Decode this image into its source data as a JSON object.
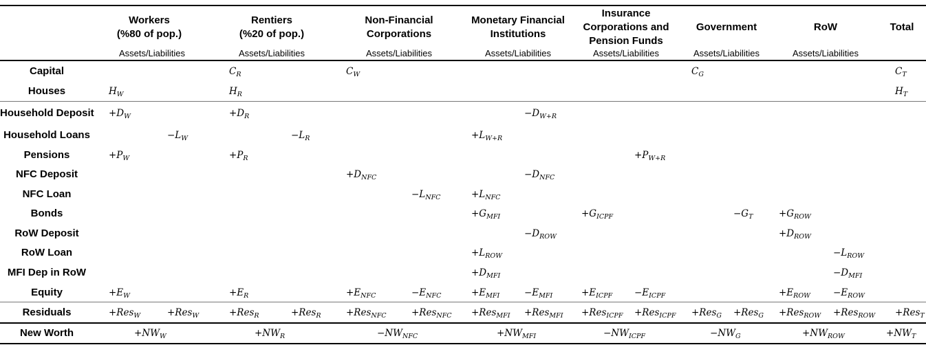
{
  "columns": [
    {
      "title": "Workers\n(%80 of pop.)",
      "sub": "Assets/Liabilities"
    },
    {
      "title": "Rentiers\n(%20 of pop.)",
      "sub": "Assets/Liabilities"
    },
    {
      "title": "Non-Financial\nCorporations",
      "sub": "Assets/Liabilities"
    },
    {
      "title": "Monetary Financial\nInstitutions",
      "sub": "Assets/Liabilities"
    },
    {
      "title": "Insurance\nCorporations and\nPension Funds",
      "sub": "Assets/Liabilities"
    },
    {
      "title": "Government",
      "sub": "Assets/Liabilities"
    },
    {
      "title": "RoW",
      "sub": "Assets/Liabilities"
    },
    {
      "title": "Total",
      "sub": ""
    }
  ],
  "rows": [
    {
      "label": "Capital",
      "cells": [
        {
          "col": 2,
          "sign": "",
          "sym": "C",
          "sub": "R"
        },
        {
          "col": 4,
          "sign": "",
          "sym": "C",
          "sub": "W"
        },
        {
          "col": 10,
          "sign": "",
          "sym": "C",
          "sub": "G"
        },
        {
          "col": 14,
          "sign": "",
          "sym": "C",
          "sub": "T"
        }
      ]
    },
    {
      "label": "Houses",
      "cells": [
        {
          "col": 0,
          "sign": "",
          "sym": "H",
          "sub": "W"
        },
        {
          "col": 2,
          "sign": "",
          "sym": "H",
          "sub": "R"
        },
        {
          "col": 14,
          "sign": "",
          "sym": "H",
          "sub": "T"
        }
      ]
    },
    {
      "label": "Household Deposit",
      "cells": [
        {
          "col": 0,
          "sign": "+",
          "sym": "D",
          "sub": "W"
        },
        {
          "col": 2,
          "sign": "+",
          "sym": "D",
          "sub": "R"
        },
        {
          "col": 7,
          "sign": "−",
          "sym": "D",
          "sub": "W+R"
        }
      ]
    },
    {
      "label": "Household Loans",
      "cells": [
        {
          "col": 1,
          "sign": "−",
          "sym": "L",
          "sub": "W"
        },
        {
          "col": 3,
          "sign": "−",
          "sym": "L",
          "sub": "R"
        },
        {
          "col": 6,
          "sign": "+",
          "sym": "L",
          "sub": "W+R"
        }
      ]
    },
    {
      "label": "Pensions",
      "cells": [
        {
          "col": 0,
          "sign": "+",
          "sym": "P",
          "sub": "W"
        },
        {
          "col": 2,
          "sign": "+",
          "sym": "P",
          "sub": "R"
        },
        {
          "col": 9,
          "sign": "+",
          "sym": "P",
          "sub": "W+R"
        }
      ]
    },
    {
      "label": "NFC Deposit",
      "cells": [
        {
          "col": 4,
          "sign": "+",
          "sym": "D",
          "sub": "NFC"
        },
        {
          "col": 7,
          "sign": "−",
          "sym": "D",
          "sub": "NFC"
        }
      ]
    },
    {
      "label": "NFC Loan",
      "cells": [
        {
          "col": 5,
          "sign": "−",
          "sym": "L",
          "sub": "NFC"
        },
        {
          "col": 6,
          "sign": "+",
          "sym": "L",
          "sub": "NFC"
        }
      ]
    },
    {
      "label": "Bonds",
      "cells": [
        {
          "col": 6,
          "sign": "+",
          "sym": "G",
          "sub": "MFI"
        },
        {
          "col": 8,
          "sign": "+",
          "sym": "G",
          "sub": "ICPF"
        },
        {
          "col": 11,
          "sign": "−",
          "sym": "G",
          "sub": "T"
        },
        {
          "col": 12,
          "sign": "+",
          "sym": "G",
          "sub": "ROW"
        }
      ]
    },
    {
      "label": "RoW Deposit",
      "cells": [
        {
          "col": 7,
          "sign": "−",
          "sym": "D",
          "sub": "ROW"
        },
        {
          "col": 12,
          "sign": "+",
          "sym": "D",
          "sub": "ROW"
        }
      ]
    },
    {
      "label": "RoW Loan",
      "cells": [
        {
          "col": 6,
          "sign": "+",
          "sym": "L",
          "sub": "ROW"
        },
        {
          "col": 13,
          "sign": "−",
          "sym": "L",
          "sub": "ROW"
        }
      ]
    },
    {
      "label": "MFI Dep in RoW",
      "cells": [
        {
          "col": 6,
          "sign": "+",
          "sym": "D",
          "sub": "MFI"
        },
        {
          "col": 13,
          "sign": "−",
          "sym": "D",
          "sub": "MFI"
        }
      ]
    },
    {
      "label": "Equity",
      "cells": [
        {
          "col": 0,
          "sign": "+",
          "sym": "E",
          "sub": "W"
        },
        {
          "col": 2,
          "sign": "+",
          "sym": "E",
          "sub": "R"
        },
        {
          "col": 4,
          "sign": "+",
          "sym": "E",
          "sub": "NFC"
        },
        {
          "col": 5,
          "sign": "−",
          "sym": "E",
          "sub": "NFC"
        },
        {
          "col": 6,
          "sign": "+",
          "sym": "E",
          "sub": "MFI"
        },
        {
          "col": 7,
          "sign": "−",
          "sym": "E",
          "sub": "MFI"
        },
        {
          "col": 8,
          "sign": "+",
          "sym": "E",
          "sub": "ICPF"
        },
        {
          "col": 9,
          "sign": "−",
          "sym": "E",
          "sub": "ICPF"
        },
        {
          "col": 12,
          "sign": "+",
          "sym": "E",
          "sub": "ROW"
        },
        {
          "col": 13,
          "sign": "−",
          "sym": "E",
          "sub": "ROW"
        }
      ]
    },
    {
      "label": "Residuals",
      "cells": [
        {
          "col": 0,
          "sign": "+",
          "sym": "Res",
          "sub": "W"
        },
        {
          "col": 1,
          "sign": "+",
          "sym": "Res",
          "sub": "W"
        },
        {
          "col": 2,
          "sign": "+",
          "sym": "Res",
          "sub": "R"
        },
        {
          "col": 3,
          "sign": "+",
          "sym": "Res",
          "sub": "R"
        },
        {
          "col": 4,
          "sign": "+",
          "sym": "Res",
          "sub": "NFC"
        },
        {
          "col": 5,
          "sign": "+",
          "sym": "Res",
          "sub": "NFC"
        },
        {
          "col": 6,
          "sign": "+",
          "sym": "Res",
          "sub": "MFI"
        },
        {
          "col": 7,
          "sign": "+",
          "sym": "Res",
          "sub": "MFI"
        },
        {
          "col": 8,
          "sign": "+",
          "sym": "Res",
          "sub": "ICPF"
        },
        {
          "col": 9,
          "sign": "+",
          "sym": "Res",
          "sub": "ICPF"
        },
        {
          "col": 10,
          "sign": "+",
          "sym": "Res",
          "sub": "G"
        },
        {
          "col": 11,
          "sign": "+",
          "sym": "Res",
          "sub": "G"
        },
        {
          "col": 12,
          "sign": "+",
          "sym": "Res",
          "sub": "ROW"
        },
        {
          "col": 13,
          "sign": "+",
          "sym": "Res",
          "sub": "ROW"
        },
        {
          "col": 14,
          "sign": "+",
          "sym": "Res",
          "sub": "T"
        }
      ]
    },
    {
      "label": "New Worth",
      "cells": [
        {
          "col": 0,
          "sign": "+",
          "sym": "NW",
          "sub": "W"
        },
        {
          "col": 1,
          "sign": "+",
          "sym": "NW",
          "sub": "R"
        },
        {
          "col": 2,
          "sign": "−",
          "sym": "NW",
          "sub": "NFC"
        },
        {
          "col": 3,
          "sign": "+",
          "sym": "NW",
          "sub": "MFI"
        },
        {
          "col": 4,
          "sign": "−",
          "sym": "NW",
          "sub": "ICPF"
        },
        {
          "col": 5,
          "sign": "−",
          "sym": "NW",
          "sub": "G"
        },
        {
          "col": 6,
          "sign": "+",
          "sym": "NW",
          "sub": "ROW"
        },
        {
          "col": 7,
          "sign": "+",
          "sym": "NW",
          "sub": "T"
        }
      ]
    }
  ]
}
